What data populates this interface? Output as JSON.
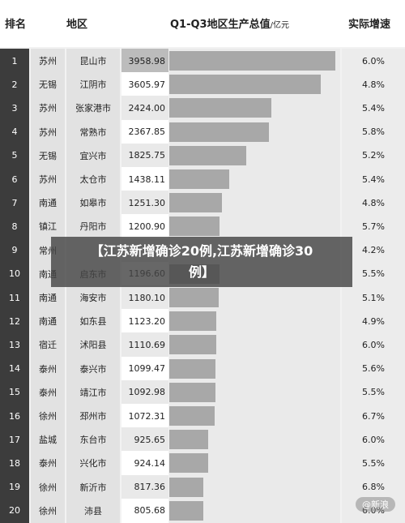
{
  "header": {
    "rank": "排名",
    "region": "地区",
    "value_title": "Q1-Q3地区生产总值",
    "value_unit": "/亿元",
    "growth": "实际增速"
  },
  "chart_data": {
    "type": "bar",
    "xlim": [
      0,
      3958.98
    ],
    "rows": [
      {
        "rank": "1",
        "region": "苏州",
        "city": "昆山市",
        "value": 3958.98,
        "value_label": "3958.98",
        "growth": "6.0%"
      },
      {
        "rank": "2",
        "region": "无锡",
        "city": "江阴市",
        "value": 3605.97,
        "value_label": "3605.97",
        "growth": "4.8%"
      },
      {
        "rank": "3",
        "region": "苏州",
        "city": "张家港市",
        "value": 2424.0,
        "value_label": "2424.00",
        "growth": "5.4%"
      },
      {
        "rank": "4",
        "region": "苏州",
        "city": "常熟市",
        "value": 2367.85,
        "value_label": "2367.85",
        "growth": "5.8%"
      },
      {
        "rank": "5",
        "region": "无锡",
        "city": "宜兴市",
        "value": 1825.75,
        "value_label": "1825.75",
        "growth": "5.2%"
      },
      {
        "rank": "6",
        "region": "苏州",
        "city": "太仓市",
        "value": 1438.11,
        "value_label": "1438.11",
        "growth": "5.4%"
      },
      {
        "rank": "7",
        "region": "南通",
        "city": "如皋市",
        "value": 1251.3,
        "value_label": "1251.30",
        "growth": "4.8%"
      },
      {
        "rank": "8",
        "region": "镇江",
        "city": "丹阳市",
        "value": 1200.9,
        "value_label": "1200.90",
        "growth": "5.7%"
      },
      {
        "rank": "9",
        "region": "常州",
        "city": "",
        "value": null,
        "value_label": "",
        "growth": "4.2%"
      },
      {
        "rank": "10",
        "region": "南通",
        "city": "启东市",
        "value": 1196.6,
        "value_label": "1196.60",
        "growth": "5.5%"
      },
      {
        "rank": "11",
        "region": "南通",
        "city": "海安市",
        "value": 1180.1,
        "value_label": "1180.10",
        "growth": "5.1%"
      },
      {
        "rank": "12",
        "region": "南通",
        "city": "如东县",
        "value": 1123.2,
        "value_label": "1123.20",
        "growth": "4.9%"
      },
      {
        "rank": "13",
        "region": "宿迁",
        "city": "沭阳县",
        "value": 1110.69,
        "value_label": "1110.69",
        "growth": "6.0%"
      },
      {
        "rank": "14",
        "region": "泰州",
        "city": "泰兴市",
        "value": 1099.47,
        "value_label": "1099.47",
        "growth": "5.6%"
      },
      {
        "rank": "15",
        "region": "泰州",
        "city": "靖江市",
        "value": 1092.98,
        "value_label": "1092.98",
        "growth": "5.5%"
      },
      {
        "rank": "16",
        "region": "徐州",
        "city": "邳州市",
        "value": 1072.31,
        "value_label": "1072.31",
        "growth": "6.7%"
      },
      {
        "rank": "17",
        "region": "盐城",
        "city": "东台市",
        "value": 925.65,
        "value_label": "925.65",
        "growth": "6.0%"
      },
      {
        "rank": "18",
        "region": "泰州",
        "city": "兴化市",
        "value": 924.14,
        "value_label": "924.14",
        "growth": "5.5%"
      },
      {
        "rank": "19",
        "region": "徐州",
        "city": "新沂市",
        "value": 817.36,
        "value_label": "817.36",
        "growth": "6.8%"
      },
      {
        "rank": "20",
        "region": "徐州",
        "city": "沛县",
        "value": 805.68,
        "value_label": "805.68",
        "growth": "6.0%"
      }
    ]
  },
  "overlay": {
    "line1": "【江苏新增确诊20例,江苏新增确诊30",
    "line2": "例】"
  },
  "watermark": "@新浪"
}
